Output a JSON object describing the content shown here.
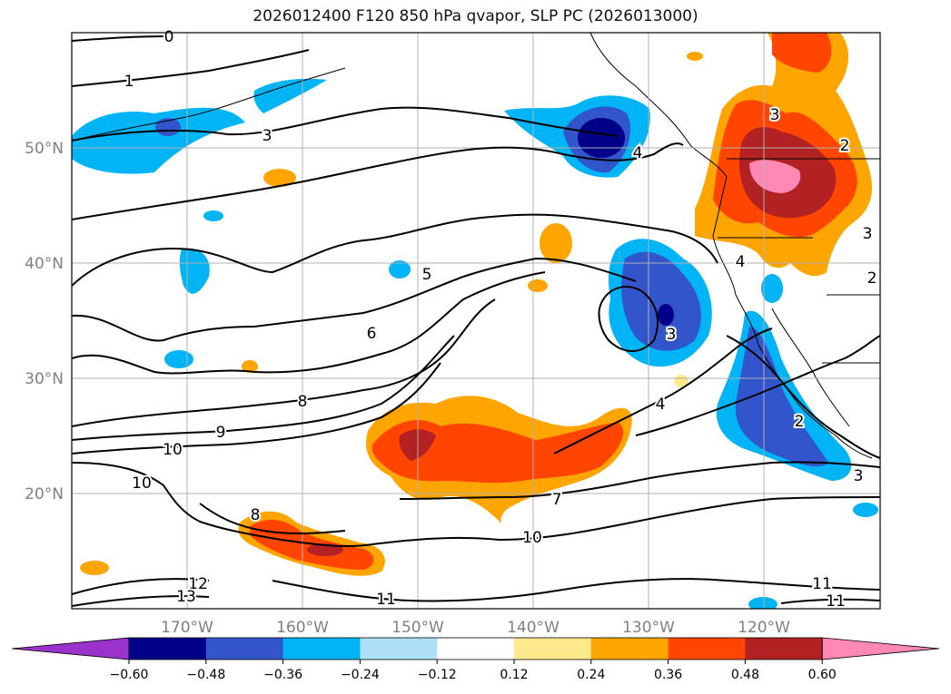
{
  "title": "2026012400 F120 850 hPa qvapor, SLP PC (2026013000)",
  "map": {
    "lon_range": [
      -180,
      -110
    ],
    "lat_range": [
      10,
      60
    ],
    "lat_labels": [
      "50°N",
      "40°N",
      "30°N",
      "20°N"
    ],
    "lon_labels": [
      "170°W",
      "160°W",
      "150°W",
      "140°W",
      "130°W",
      "120°W"
    ]
  },
  "colorbar": {
    "ticks": [
      "−0.60",
      "−0.48",
      "−0.36",
      "−0.24",
      "−0.12",
      "0.12",
      "0.24",
      "0.36",
      "0.48",
      "0.60"
    ],
    "colors": [
      "#9933cc",
      "#000088",
      "#3355cc",
      "#00b4f5",
      "#aee0fa",
      "#ffffff",
      "#ffe98c",
      "#ffa500",
      "#ff4500",
      "#b22222",
      "#ff88b4"
    ]
  },
  "contour_labels": [
    "0",
    "1",
    "3",
    "4",
    "3",
    "2",
    "3",
    "4",
    "2",
    "5",
    "6",
    "3",
    "8",
    "9",
    "10",
    "4",
    "2",
    "3",
    "10",
    "8",
    "7",
    "10",
    "12",
    "13",
    "11",
    "11",
    "11"
  ]
}
